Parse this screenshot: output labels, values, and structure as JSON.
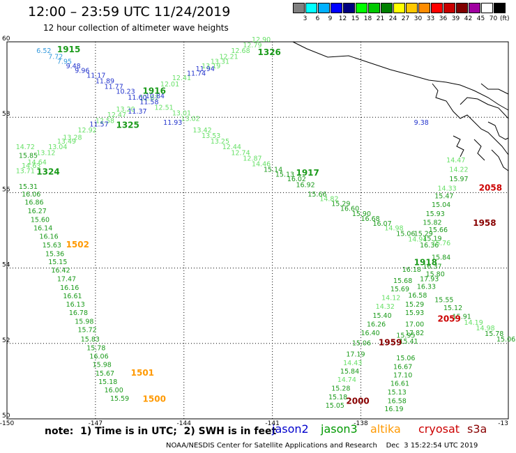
{
  "header": {
    "title": "12:00 – 23:59 UTC 11/24/2019",
    "subtitle": "12 hour collection of altimeter wave heights"
  },
  "scale": {
    "labels": [
      "3",
      "6",
      "9",
      "12",
      "15",
      "18",
      "21",
      "24",
      "27",
      "30",
      "33",
      "36",
      "39",
      "42",
      "45",
      "70"
    ],
    "colors": [
      "#808080",
      "#00ffff",
      "#00b0ff",
      "#0000ff",
      "#000080",
      "#00ff00",
      "#00c800",
      "#008000",
      "#ffff00",
      "#ffc800",
      "#ff8c00",
      "#ff0000",
      "#c80000",
      "#800000",
      "#a000a0",
      "#ffffff",
      "#000000"
    ],
    "unit": "(ft)"
  },
  "axes": {
    "lon_labels": [
      "-150",
      "-147",
      "-144",
      "-141",
      "-138",
      "-13"
    ],
    "lat_labels": [
      "60",
      "58",
      "56",
      "54",
      "52",
      "50"
    ]
  },
  "colors": {
    "jason3_light": "#66e066",
    "jason3_dark": "#1a9a1a",
    "altika": "#ff9900",
    "cryosat": "#cc0000",
    "s3a": "#880000",
    "jason2": "#2233cc"
  },
  "tracks": {
    "jason2": [
      {
        "t": "6.52",
        "lon": -149.0,
        "lat": 59.7,
        "c": "#3399dd"
      },
      {
        "t": "7.72",
        "lon": -148.6,
        "lat": 59.55,
        "c": "#3399dd"
      },
      {
        "t": "7.95",
        "lon": -148.3,
        "lat": 59.42,
        "c": "#3399dd"
      },
      {
        "t": "9.48",
        "lon": -148.0,
        "lat": 59.3,
        "c": "#2233cc"
      },
      {
        "t": "9.96",
        "lon": -147.7,
        "lat": 59.18,
        "c": "#2233cc"
      },
      {
        "t": "11.17",
        "lon": -147.3,
        "lat": 59.05,
        "c": "#2233cc"
      },
      {
        "t": "11.89",
        "lon": -147.0,
        "lat": 58.9,
        "c": "#2233cc"
      },
      {
        "t": "11.77",
        "lon": -146.7,
        "lat": 58.75,
        "c": "#2233cc"
      },
      {
        "t": "10.23",
        "lon": -146.3,
        "lat": 58.62,
        "c": "#2233cc"
      },
      {
        "t": "11.60",
        "lon": -145.9,
        "lat": 58.47,
        "c": "#2233cc"
      },
      {
        "t": "11.58",
        "lon": -145.5,
        "lat": 58.35,
        "c": "#2233cc"
      },
      {
        "t": "11.37",
        "lon": -145.9,
        "lat": 58.1,
        "c": "#2233cc"
      },
      {
        "t": "11.57",
        "lon": -147.2,
        "lat": 57.75,
        "c": "#2233cc"
      },
      {
        "t": "11.93",
        "lon": -144.7,
        "lat": 57.8,
        "c": "#2233cc"
      },
      {
        "t": "11.74",
        "lon": -143.9,
        "lat": 59.1,
        "c": "#2233cc"
      },
      {
        "t": "11.94",
        "lon": -143.6,
        "lat": 59.22,
        "c": "#2233cc"
      },
      {
        "t": "10.84",
        "lon": -145.3,
        "lat": 58.5,
        "c": "#2233cc"
      },
      {
        "t": "9.38",
        "lon": -136.2,
        "lat": 57.8,
        "c": "#2233cc"
      }
    ],
    "jason3": [
      {
        "t": "12.90",
        "lon": -141.7,
        "lat": 60.0,
        "c": "#66e066"
      },
      {
        "t": "12.79",
        "lon": -142.0,
        "lat": 59.85,
        "c": "#66e066"
      },
      {
        "t": "12.68",
        "lon": -142.4,
        "lat": 59.7,
        "c": "#66e066"
      },
      {
        "t": "12.21",
        "lon": -142.8,
        "lat": 59.55,
        "c": "#66e066"
      },
      {
        "t": "13.31",
        "lon": -143.1,
        "lat": 59.42,
        "c": "#66e066"
      },
      {
        "t": "13.19",
        "lon": -143.4,
        "lat": 59.3,
        "c": "#66e066"
      },
      {
        "t": "12.41",
        "lon": -144.4,
        "lat": 58.98,
        "c": "#66e066"
      },
      {
        "t": "12.01",
        "lon": -144.8,
        "lat": 58.82,
        "c": "#66e066"
      },
      {
        "t": "11.67",
        "lon": -145.5,
        "lat": 58.45,
        "c": "#66e066"
      },
      {
        "t": "12.51",
        "lon": -145.0,
        "lat": 58.2,
        "c": "#66e066"
      },
      {
        "t": "13.01",
        "lon": -144.4,
        "lat": 58.05,
        "c": "#66e066"
      },
      {
        "t": "13.02",
        "lon": -144.1,
        "lat": 57.9,
        "c": "#66e066"
      },
      {
        "t": "13.20",
        "lon": -146.3,
        "lat": 58.15,
        "c": "#66e066"
      },
      {
        "t": "12.47",
        "lon": -146.6,
        "lat": 58.0,
        "c": "#66e066"
      },
      {
        "t": "12.58",
        "lon": -147.0,
        "lat": 57.85,
        "c": "#66e066"
      },
      {
        "t": "12.92",
        "lon": -147.6,
        "lat": 57.6,
        "c": "#66e066"
      },
      {
        "t": "13.28",
        "lon": -148.1,
        "lat": 57.4,
        "c": "#66e066"
      },
      {
        "t": "13.49",
        "lon": -148.3,
        "lat": 57.3,
        "c": "#66e066"
      },
      {
        "t": "13.04",
        "lon": -148.6,
        "lat": 57.15,
        "c": "#66e066"
      },
      {
        "t": "13.12",
        "lon": -149.0,
        "lat": 57.0,
        "c": "#66e066"
      },
      {
        "t": "14.72",
        "lon": -149.7,
        "lat": 57.15,
        "c": "#66e066"
      },
      {
        "t": "15.85",
        "lon": -149.6,
        "lat": 56.92,
        "c": "#1a9a1a"
      },
      {
        "t": "14.64",
        "lon": -149.3,
        "lat": 56.75,
        "c": "#66e066"
      },
      {
        "t": "14.63",
        "lon": -149.5,
        "lat": 56.65,
        "c": "#66e066"
      },
      {
        "t": "13.71",
        "lon": -149.7,
        "lat": 56.52,
        "c": "#66e066"
      },
      {
        "t": "13.42",
        "lon": -143.7,
        "lat": 57.6,
        "c": "#66e066"
      },
      {
        "t": "13.53",
        "lon": -143.4,
        "lat": 57.45,
        "c": "#66e066"
      },
      {
        "t": "13.25",
        "lon": -143.1,
        "lat": 57.3,
        "c": "#66e066"
      },
      {
        "t": "12.44",
        "lon": -142.7,
        "lat": 57.15,
        "c": "#66e066"
      },
      {
        "t": "12.74",
        "lon": -142.4,
        "lat": 57.0,
        "c": "#66e066"
      },
      {
        "t": "12.87",
        "lon": -142.0,
        "lat": 56.85,
        "c": "#66e066"
      },
      {
        "t": "14.46",
        "lon": -141.7,
        "lat": 56.7,
        "c": "#66e066"
      },
      {
        "t": "15.14",
        "lon": -141.3,
        "lat": 56.55,
        "c": "#1a9a1a"
      },
      {
        "t": "15.13",
        "lon": -140.9,
        "lat": 56.42,
        "c": "#1a9a1a"
      },
      {
        "t": "16.02",
        "lon": -140.5,
        "lat": 56.3,
        "c": "#1a9a1a"
      },
      {
        "t": "16.92",
        "lon": -140.2,
        "lat": 56.15,
        "c": "#1a9a1a"
      },
      {
        "t": "15.66",
        "lon": -139.8,
        "lat": 55.9,
        "c": "#1a9a1a"
      },
      {
        "t": "14.82",
        "lon": -139.4,
        "lat": 55.78,
        "c": "#66e066"
      },
      {
        "t": "15.29",
        "lon": -139.0,
        "lat": 55.65,
        "c": "#1a9a1a"
      },
      {
        "t": "16.60",
        "lon": -138.7,
        "lat": 55.52,
        "c": "#1a9a1a"
      },
      {
        "t": "15.90",
        "lon": -138.3,
        "lat": 55.38,
        "c": "#1a9a1a"
      },
      {
        "t": "16.68",
        "lon": -138.0,
        "lat": 55.25,
        "c": "#1a9a1a"
      },
      {
        "t": "16.07",
        "lon": -137.6,
        "lat": 55.12,
        "c": "#1a9a1a"
      },
      {
        "t": "14.98",
        "lon": -137.2,
        "lat": 55.0,
        "c": "#66e066"
      },
      {
        "t": "15.06",
        "lon": -136.8,
        "lat": 54.85,
        "c": "#1a9a1a"
      },
      {
        "t": "14.94",
        "lon": -136.4,
        "lat": 54.7,
        "c": "#66e066"
      },
      {
        "t": "16.36",
        "lon": -136.0,
        "lat": 54.55,
        "c": "#1a9a1a"
      },
      {
        "t": "15.31",
        "lon": -149.6,
        "lat": 56.1,
        "c": "#1a9a1a"
      },
      {
        "t": "16.06",
        "lon": -149.5,
        "lat": 55.9,
        "c": "#1a9a1a"
      },
      {
        "t": "16.86",
        "lon": -149.4,
        "lat": 55.68,
        "c": "#1a9a1a"
      },
      {
        "t": "16.27",
        "lon": -149.3,
        "lat": 55.45,
        "c": "#1a9a1a"
      },
      {
        "t": "15.60",
        "lon": -149.2,
        "lat": 55.22,
        "c": "#1a9a1a"
      },
      {
        "t": "16.14",
        "lon": -149.1,
        "lat": 55.0,
        "c": "#1a9a1a"
      },
      {
        "t": "16.16",
        "lon": -148.9,
        "lat": 54.78,
        "c": "#1a9a1a"
      },
      {
        "t": "15.63",
        "lon": -148.8,
        "lat": 54.55,
        "c": "#1a9a1a"
      },
      {
        "t": "15.36",
        "lon": -148.7,
        "lat": 54.32,
        "c": "#1a9a1a"
      },
      {
        "t": "15.15",
        "lon": -148.6,
        "lat": 54.1,
        "c": "#1a9a1a"
      },
      {
        "t": "16.42",
        "lon": -148.5,
        "lat": 53.88,
        "c": "#1a9a1a"
      },
      {
        "t": "17.47",
        "lon": -148.3,
        "lat": 53.65,
        "c": "#1a9a1a"
      },
      {
        "t": "16.16",
        "lon": -148.2,
        "lat": 53.42,
        "c": "#1a9a1a"
      },
      {
        "t": "16.61",
        "lon": -148.1,
        "lat": 53.2,
        "c": "#1a9a1a"
      },
      {
        "t": "16.13",
        "lon": -148.0,
        "lat": 52.98,
        "c": "#1a9a1a"
      },
      {
        "t": "16.78",
        "lon": -147.9,
        "lat": 52.75,
        "c": "#1a9a1a"
      },
      {
        "t": "15.98",
        "lon": -147.7,
        "lat": 52.52,
        "c": "#1a9a1a"
      },
      {
        "t": "15.72",
        "lon": -147.6,
        "lat": 52.3,
        "c": "#1a9a1a"
      },
      {
        "t": "15.83",
        "lon": -147.5,
        "lat": 52.05,
        "c": "#1a9a1a"
      },
      {
        "t": "15.78",
        "lon": -147.3,
        "lat": 51.82,
        "c": "#1a9a1a"
      },
      {
        "t": "16.06",
        "lon": -147.2,
        "lat": 51.6,
        "c": "#1a9a1a"
      },
      {
        "t": "15.98",
        "lon": -147.1,
        "lat": 51.38,
        "c": "#1a9a1a"
      },
      {
        "t": "15.67",
        "lon": -147.0,
        "lat": 51.15,
        "c": "#1a9a1a"
      },
      {
        "t": "15.18",
        "lon": -146.9,
        "lat": 50.92,
        "c": "#1a9a1a"
      },
      {
        "t": "16.00",
        "lon": -146.7,
        "lat": 50.7,
        "c": "#1a9a1a"
      },
      {
        "t": "15.59",
        "lon": -146.5,
        "lat": 50.48,
        "c": "#1a9a1a"
      },
      {
        "t": "14.47",
        "lon": -135.1,
        "lat": 56.8,
        "c": "#66e066"
      },
      {
        "t": "14.22",
        "lon": -135.0,
        "lat": 56.55,
        "c": "#66e066"
      },
      {
        "t": "15.97",
        "lon": -135.0,
        "lat": 56.3,
        "c": "#1a9a1a"
      },
      {
        "t": "14.33",
        "lon": -135.4,
        "lat": 56.05,
        "c": "#66e066"
      },
      {
        "t": "15.47",
        "lon": -135.5,
        "lat": 55.85,
        "c": "#1a9a1a"
      },
      {
        "t": "15.04",
        "lon": -135.6,
        "lat": 55.62,
        "c": "#1a9a1a"
      },
      {
        "t": "15.93",
        "lon": -135.8,
        "lat": 55.38,
        "c": "#1a9a1a"
      },
      {
        "t": "15.82",
        "lon": -135.9,
        "lat": 55.15,
        "c": "#1a9a1a"
      },
      {
        "t": "15.66",
        "lon": -135.7,
        "lat": 54.95,
        "c": "#1a9a1a"
      },
      {
        "t": "15.29",
        "lon": -136.2,
        "lat": 54.85,
        "c": "#1a9a1a"
      },
      {
        "t": "15.19",
        "lon": -135.9,
        "lat": 54.72,
        "c": "#1a9a1a"
      },
      {
        "t": "15.76",
        "lon": -135.6,
        "lat": 54.6,
        "c": "#66e066"
      },
      {
        "t": "15.84",
        "lon": -135.6,
        "lat": 54.22,
        "c": "#1a9a1a"
      },
      {
        "t": "16.37",
        "lon": -135.9,
        "lat": 53.98,
        "c": "#1a9a1a"
      },
      {
        "t": "15.80",
        "lon": -135.8,
        "lat": 53.78,
        "c": "#1a9a1a"
      },
      {
        "t": "16.18",
        "lon": -136.6,
        "lat": 53.9,
        "c": "#1a9a1a"
      },
      {
        "t": "17.93",
        "lon": -136.0,
        "lat": 53.65,
        "c": "#1a9a1a"
      },
      {
        "t": "15.68",
        "lon": -136.9,
        "lat": 53.6,
        "c": "#1a9a1a"
      },
      {
        "t": "16.33",
        "lon": -136.1,
        "lat": 53.45,
        "c": "#1a9a1a"
      },
      {
        "t": "15.69",
        "lon": -137.0,
        "lat": 53.38,
        "c": "#1a9a1a"
      },
      {
        "t": "14.12",
        "lon": -137.3,
        "lat": 53.15,
        "c": "#66e066"
      },
      {
        "t": "16.58",
        "lon": -136.4,
        "lat": 53.22,
        "c": "#1a9a1a"
      },
      {
        "t": "15.55",
        "lon": -135.5,
        "lat": 53.1,
        "c": "#1a9a1a"
      },
      {
        "t": "14.32",
        "lon": -137.5,
        "lat": 52.92,
        "c": "#66e066"
      },
      {
        "t": "15.29",
        "lon": -136.5,
        "lat": 52.98,
        "c": "#1a9a1a"
      },
      {
        "t": "15.12",
        "lon": -135.2,
        "lat": 52.88,
        "c": "#1a9a1a"
      },
      {
        "t": "15.91",
        "lon": -134.9,
        "lat": 52.65,
        "c": "#1a9a1a"
      },
      {
        "t": "15.93",
        "lon": -136.5,
        "lat": 52.75,
        "c": "#1a9a1a"
      },
      {
        "t": "15.40",
        "lon": -137.6,
        "lat": 52.68,
        "c": "#1a9a1a"
      },
      {
        "t": "14.19",
        "lon": -134.5,
        "lat": 52.5,
        "c": "#66e066"
      },
      {
        "t": "14.98",
        "lon": -134.1,
        "lat": 52.35,
        "c": "#66e066"
      },
      {
        "t": "15.78",
        "lon": -133.8,
        "lat": 52.2,
        "c": "#1a9a1a"
      },
      {
        "t": "15.06",
        "lon": -133.4,
        "lat": 52.05,
        "c": "#1a9a1a"
      },
      {
        "t": "17.00",
        "lon": -136.5,
        "lat": 52.45,
        "c": "#1a9a1a"
      },
      {
        "t": "16.26",
        "lon": -137.8,
        "lat": 52.45,
        "c": "#1a9a1a"
      },
      {
        "t": "17.82",
        "lon": -136.5,
        "lat": 52.22,
        "c": "#1a9a1a"
      },
      {
        "t": "16.40",
        "lon": -138.0,
        "lat": 52.22,
        "c": "#1a9a1a"
      },
      {
        "t": "15.06",
        "lon": -138.3,
        "lat": 51.95,
        "c": "#1a9a1a"
      },
      {
        "t": "15.06",
        "lon": -136.8,
        "lat": 51.55,
        "c": "#1a9a1a"
      },
      {
        "t": "17.19",
        "lon": -138.5,
        "lat": 51.65,
        "c": "#1a9a1a"
      },
      {
        "t": "16.67",
        "lon": -136.9,
        "lat": 51.32,
        "c": "#1a9a1a"
      },
      {
        "t": "14.43",
        "lon": -138.6,
        "lat": 51.42,
        "c": "#66e066"
      },
      {
        "t": "17.10",
        "lon": -136.9,
        "lat": 51.1,
        "c": "#1a9a1a"
      },
      {
        "t": "15.84",
        "lon": -138.7,
        "lat": 51.2,
        "c": "#1a9a1a"
      },
      {
        "t": "16.61",
        "lon": -137.0,
        "lat": 50.88,
        "c": "#1a9a1a"
      },
      {
        "t": "14.74",
        "lon": -138.8,
        "lat": 50.98,
        "c": "#66e066"
      },
      {
        "t": "15.13",
        "lon": -137.1,
        "lat": 50.65,
        "c": "#1a9a1a"
      },
      {
        "t": "15.28",
        "lon": -139.0,
        "lat": 50.75,
        "c": "#1a9a1a"
      },
      {
        "t": "16.58",
        "lon": -137.1,
        "lat": 50.42,
        "c": "#1a9a1a"
      },
      {
        "t": "15.18",
        "lon": -139.1,
        "lat": 50.52,
        "c": "#1a9a1a"
      },
      {
        "t": "16.19",
        "lon": -137.2,
        "lat": 50.2,
        "c": "#1a9a1a"
      },
      {
        "t": "15.05",
        "lon": -139.2,
        "lat": 50.3,
        "c": "#1a9a1a"
      },
      {
        "t": "15.41",
        "lon": -136.7,
        "lat": 52.0,
        "c": "#1a9a1a"
      },
      {
        "t": "15.95",
        "lon": -136.8,
        "lat": 52.15,
        "c": "#1a9a1a"
      }
    ],
    "times": [
      {
        "t": "1915",
        "lon": -148.3,
        "lat": 59.72,
        "c": "#1a9a1a"
      },
      {
        "t": "1326",
        "lon": -141.5,
        "lat": 59.65,
        "c": "#1a9a1a"
      },
      {
        "t": "1916",
        "lon": -145.4,
        "lat": 58.62,
        "c": "#1a9a1a"
      },
      {
        "t": "1325",
        "lon": -146.3,
        "lat": 57.72,
        "c": "#1a9a1a"
      },
      {
        "t": "1324",
        "lon": -149.0,
        "lat": 56.48,
        "c": "#1a9a1a"
      },
      {
        "t": "1917",
        "lon": -140.2,
        "lat": 56.45,
        "c": "#1a9a1a"
      },
      {
        "t": "1918",
        "lon": -136.2,
        "lat": 54.08,
        "c": "#1a9a1a"
      },
      {
        "t": "1502",
        "lon": -148.0,
        "lat": 54.55,
        "c": "#ff9900"
      },
      {
        "t": "1501",
        "lon": -145.8,
        "lat": 51.15,
        "c": "#ff9900"
      },
      {
        "t": "1500",
        "lon": -145.4,
        "lat": 50.45,
        "c": "#ff9900"
      },
      {
        "t": "2058",
        "lon": -134.0,
        "lat": 56.05,
        "c": "#cc0000"
      },
      {
        "t": "1958",
        "lon": -134.2,
        "lat": 55.12,
        "c": "#880000"
      },
      {
        "t": "2059",
        "lon": -135.4,
        "lat": 52.58,
        "c": "#cc0000"
      },
      {
        "t": "1959",
        "lon": -137.4,
        "lat": 51.95,
        "c": "#880000"
      },
      {
        "t": "2000",
        "lon": -138.5,
        "lat": 50.4,
        "c": "#880000"
      }
    ]
  },
  "footer": {
    "note": "note:  1) Time is in UTC;  2) SWH is in feet",
    "sats": [
      {
        "name": "jason2",
        "color": "#0000cc"
      },
      {
        "name": "jason3",
        "color": "#009900"
      },
      {
        "name": "altika",
        "color": "#ff9900"
      },
      {
        "name": "cryosat",
        "color": "#cc0000"
      },
      {
        "name": "s3a",
        "color": "#880000"
      }
    ],
    "credit": "NOAA/NESDIS Center for Satellite Applications and Research    Dec  3 15:22:54 UTC 2019"
  }
}
